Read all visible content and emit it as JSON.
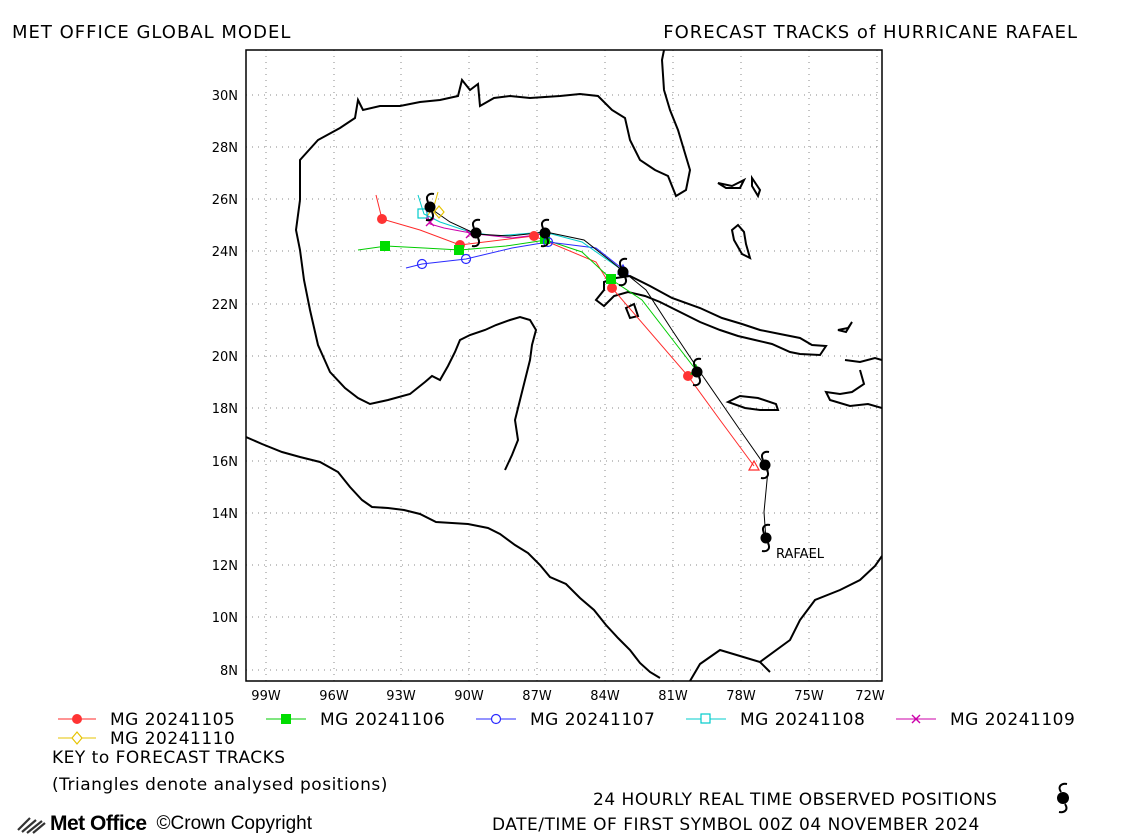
{
  "header": {
    "left": "MET OFFICE GLOBAL MODEL",
    "right": "FORECAST TRACKS of HURRICANE RAFAEL"
  },
  "map": {
    "lat_labels": [
      "30N",
      "28N",
      "26N",
      "24N",
      "22N",
      "20N",
      "18N",
      "16N",
      "14N",
      "12N",
      "10N",
      "8N"
    ],
    "lon_labels": [
      "99W",
      "96W",
      "93W",
      "90W",
      "87W",
      "84W",
      "81W",
      "78W",
      "75W",
      "72W"
    ],
    "storm_label": "RAFAEL",
    "colors": {
      "coast": "#000000",
      "grid": "#888888",
      "observed": "#000000"
    }
  },
  "legend": [
    {
      "label": "MG 20241105",
      "color": "#ff2a2a",
      "marker": "filled-circle"
    },
    {
      "label": "MG 20241106",
      "color": "#00cc00",
      "marker": "filled-square"
    },
    {
      "label": "MG 20241107",
      "color": "#2a2aff",
      "marker": "open-circle"
    },
    {
      "label": "MG 20241108",
      "color": "#00cccc",
      "marker": "open-square"
    },
    {
      "label": "MG 20241109",
      "color": "#cc00aa",
      "marker": "x"
    },
    {
      "label": "MG 20241110",
      "color": "#e6c300",
      "marker": "open-diamond"
    }
  ],
  "footer": {
    "key_title": "KEY to FORECAST TRACKS",
    "key_note": "(Triangles denote analysed positions)",
    "observed": "24 HOURLY REAL TIME OBSERVED POSITIONS",
    "first_symbol": "DATE/TIME OF FIRST SYMBOL 00Z 04 NOVEMBER 2024",
    "logo": "Met Office",
    "copyright": "Crown Copyright"
  }
}
